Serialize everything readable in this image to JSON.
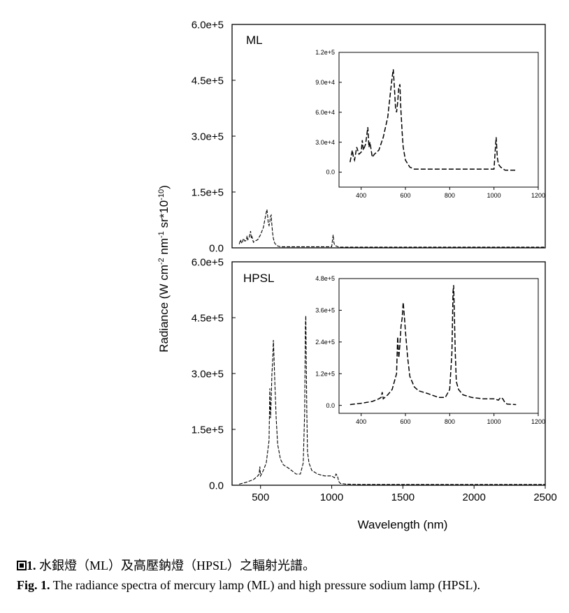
{
  "y_label_parts": [
    "Radiance (W cm",
    "-2",
    " nm",
    "-1",
    " sr*10",
    "-10",
    ")"
  ],
  "chart_data": [
    {
      "type": "line",
      "panel_label": "ML",
      "xlim": [
        300,
        2500
      ],
      "ylim": [
        0,
        600000
      ],
      "yticks": [
        0,
        150000,
        300000,
        450000,
        600000
      ],
      "ytick_labels": [
        "0.0",
        "1.5e+5",
        "3.0e+5",
        "4.5e+5",
        "6.0e+5"
      ],
      "series": [
        {
          "x": [
            350,
            360,
            365,
            370,
            380,
            390,
            400,
            405,
            410,
            420,
            430,
            435,
            440,
            450,
            460,
            480,
            500,
            520,
            530,
            540,
            545,
            550,
            555,
            560,
            565,
            570,
            575,
            578,
            580,
            585,
            590,
            600,
            620,
            640,
            700,
            800,
            900,
            1000,
            1005,
            1010,
            1015,
            1020,
            1030,
            1050,
            1100,
            1200,
            1400,
            1600,
            1800,
            2000,
            2200,
            2500
          ],
          "y": [
            10000,
            22000,
            15000,
            12000,
            25000,
            18000,
            20000,
            32000,
            22000,
            28000,
            45000,
            25000,
            30000,
            15000,
            18000,
            22000,
            35000,
            55000,
            75000,
            95000,
            103000,
            85000,
            65000,
            60000,
            70000,
            85000,
            88000,
            70000,
            60000,
            40000,
            25000,
            12000,
            5000,
            3000,
            3000,
            3000,
            3000,
            3000,
            20000,
            35000,
            15000,
            8000,
            5000,
            2000,
            2000,
            2000,
            2000,
            2000,
            2000,
            2000,
            2000,
            2000
          ]
        }
      ]
    },
    {
      "type": "line",
      "panel_label": "HPSL",
      "xlim": [
        300,
        2500
      ],
      "ylim": [
        0,
        600000
      ],
      "yticks": [
        0,
        150000,
        300000,
        450000,
        600000
      ],
      "ytick_labels": [
        "0.0",
        "1.5e+5",
        "3.0e+5",
        "4.5e+5",
        "6.0e+5"
      ],
      "xticks": [
        500,
        1000,
        1500,
        2000,
        2500
      ],
      "xtick_labels": [
        "500",
        "1000",
        "1500",
        "2000",
        "2500"
      ],
      "xlabel": "Wavelength (nm)",
      "series": [
        {
          "x": [
            350,
            400,
            450,
            480,
            490,
            495,
            500,
            520,
            540,
            560,
            565,
            570,
            575,
            580,
            585,
            590,
            595,
            600,
            610,
            620,
            640,
            660,
            700,
            750,
            780,
            800,
            810,
            815,
            818,
            820,
            825,
            830,
            840,
            860,
            900,
            950,
            1000,
            1020,
            1030,
            1040,
            1050,
            1060,
            1100,
            1200,
            1500,
            2000,
            2500
          ],
          "y": [
            3000,
            8000,
            15000,
            25000,
            30000,
            50000,
            25000,
            40000,
            60000,
            120000,
            260000,
            180000,
            230000,
            300000,
            330000,
            390000,
            340000,
            280000,
            180000,
            110000,
            70000,
            55000,
            45000,
            30000,
            30000,
            60000,
            200000,
            430000,
            455000,
            380000,
            200000,
            90000,
            60000,
            40000,
            30000,
            25000,
            25000,
            20000,
            30000,
            25000,
            10000,
            5000,
            3000,
            2000,
            2000,
            2000,
            2000
          ]
        }
      ]
    },
    {
      "type": "line",
      "panel_label": "",
      "inset_of": "ML",
      "xlim": [
        300,
        1200
      ],
      "ylim": [
        -15000,
        120000
      ],
      "xticks": [
        400,
        600,
        800,
        1000,
        1200
      ],
      "xtick_labels": [
        "400",
        "600",
        "800",
        "1000",
        "1200"
      ],
      "yticks": [
        0,
        30000,
        60000,
        90000,
        120000
      ],
      "ytick_labels": [
        "0.0",
        "3.0e+4",
        "6.0e+4",
        "9.0e+4",
        "1.2e+5"
      ],
      "series": [
        {
          "x": [
            350,
            360,
            365,
            370,
            380,
            390,
            400,
            405,
            410,
            420,
            430,
            435,
            440,
            450,
            460,
            480,
            500,
            520,
            530,
            540,
            545,
            550,
            555,
            560,
            565,
            570,
            575,
            578,
            580,
            585,
            590,
            600,
            620,
            640,
            700,
            800,
            900,
            1000,
            1005,
            1010,
            1015,
            1020,
            1030,
            1050,
            1100
          ],
          "y": [
            10000,
            22000,
            15000,
            12000,
            25000,
            18000,
            20000,
            32000,
            22000,
            28000,
            45000,
            25000,
            30000,
            15000,
            18000,
            22000,
            35000,
            55000,
            75000,
            95000,
            103000,
            85000,
            65000,
            60000,
            70000,
            85000,
            88000,
            70000,
            60000,
            40000,
            25000,
            12000,
            5000,
            3000,
            3000,
            3000,
            3000,
            3000,
            20000,
            35000,
            15000,
            8000,
            5000,
            2000,
            2000
          ]
        }
      ]
    },
    {
      "type": "line",
      "panel_label": "",
      "inset_of": "HPSL",
      "xlim": [
        300,
        1200
      ],
      "ylim": [
        -30000,
        480000
      ],
      "xticks": [
        400,
        600,
        800,
        1000,
        1200
      ],
      "xtick_labels": [
        "400",
        "600",
        "800",
        "1000",
        "1200"
      ],
      "yticks": [
        0,
        120000,
        240000,
        360000,
        480000
      ],
      "ytick_labels": [
        "0.0",
        "1.2e+5",
        "2.4e+5",
        "3.6e+5",
        "4.8e+5"
      ],
      "series": [
        {
          "x": [
            350,
            400,
            450,
            480,
            490,
            495,
            500,
            520,
            540,
            560,
            565,
            570,
            575,
            580,
            585,
            590,
            595,
            600,
            610,
            620,
            640,
            660,
            700,
            750,
            780,
            800,
            810,
            815,
            818,
            820,
            825,
            830,
            840,
            860,
            900,
            950,
            1000,
            1020,
            1030,
            1040,
            1050,
            1060,
            1100
          ],
          "y": [
            3000,
            8000,
            15000,
            25000,
            30000,
            50000,
            25000,
            40000,
            60000,
            120000,
            260000,
            180000,
            230000,
            300000,
            330000,
            390000,
            340000,
            280000,
            180000,
            110000,
            70000,
            55000,
            45000,
            30000,
            30000,
            60000,
            200000,
            430000,
            455000,
            380000,
            200000,
            90000,
            60000,
            40000,
            30000,
            25000,
            25000,
            20000,
            30000,
            25000,
            10000,
            5000,
            3000
          ]
        }
      ]
    }
  ],
  "caption_zh": {
    "num": "1.",
    "text": " 水銀燈（ML）及高壓鈉燈（HPSL）之輻射光譜。"
  },
  "caption_en": {
    "prefix": "Fig. 1.",
    "text": " The radiance spectra of mercury lamp (ML) and high pressure sodium lamp (HPSL)."
  }
}
